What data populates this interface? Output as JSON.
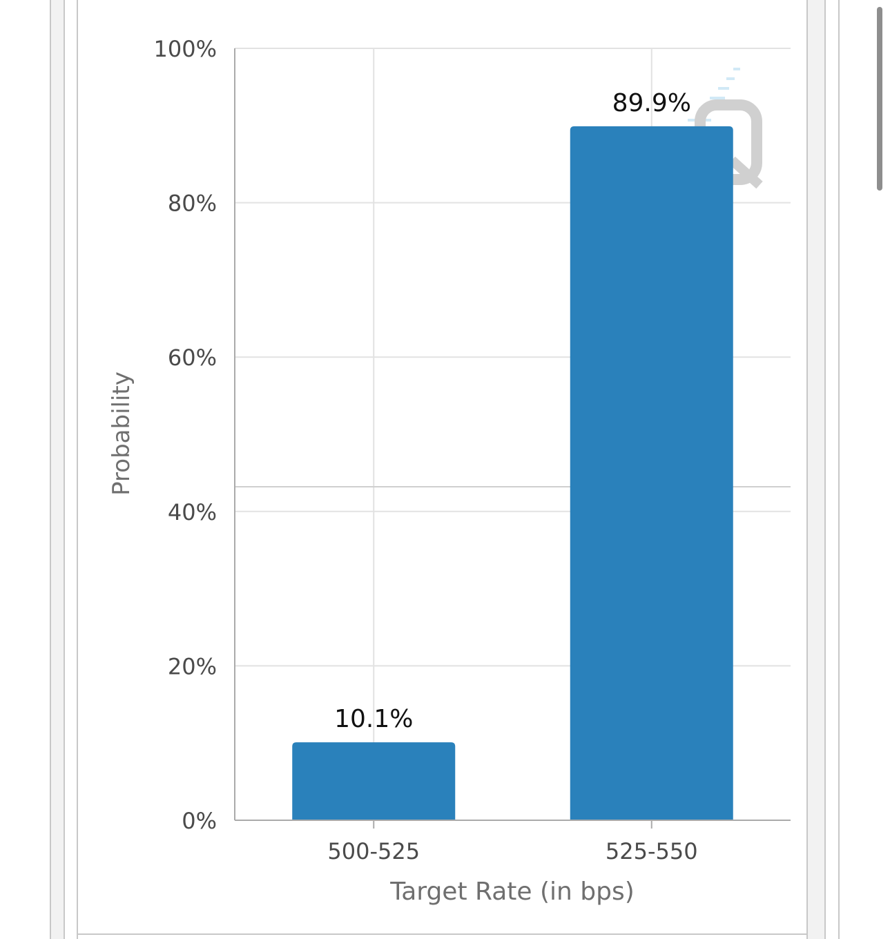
{
  "chart_data": {
    "type": "bar",
    "title": "",
    "xlabel": "Target Rate (in bps)",
    "ylabel": "Probability",
    "categories": [
      "500-525",
      "525-550"
    ],
    "values": [
      10.1,
      89.9
    ],
    "data_labels": [
      "10.1%",
      "89.9%"
    ],
    "ylim": [
      0,
      100
    ],
    "yticks": [
      0,
      20,
      40,
      60,
      80,
      100
    ],
    "ytick_labels": [
      "0%",
      "20%",
      "40%",
      "60%",
      "80%",
      "100%"
    ],
    "grid": true,
    "legend": "none",
    "bar_color": "#2a81bb"
  },
  "colors": {
    "grid": "#e2e2e2",
    "axis": "#aaaaaa",
    "tick_text": "#4a4a4a",
    "label_text": "#6f6f6f",
    "data_label_text": "#111111"
  },
  "icons": {
    "watermark": "cme-fedwatch-q-logo-icon"
  }
}
